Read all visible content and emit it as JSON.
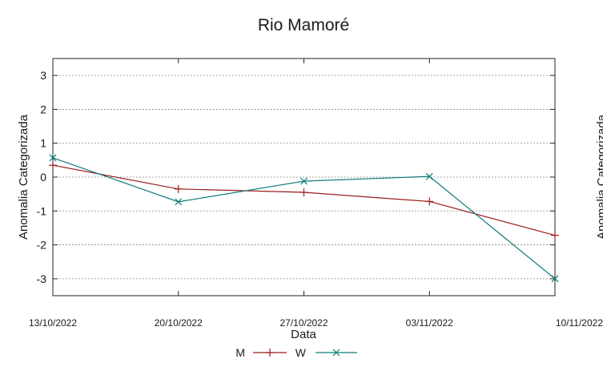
{
  "chart_data": {
    "type": "line",
    "title": "Rio Mamoré",
    "xlabel": "Data",
    "ylabel": "Anomalia Categorizada",
    "ylabel_right": "Anomalia Categorizada",
    "categories": [
      "13/10/2022",
      "20/10/2022",
      "27/10/2022",
      "03/11/2022",
      "10/11/2022"
    ],
    "ylim": [
      -3.5,
      3.5
    ],
    "yticks": [
      "3",
      "2",
      "1",
      "0",
      "-1",
      "-2",
      "-3"
    ],
    "grid": true,
    "legend_position": "bottom-center",
    "series": [
      {
        "name": "M",
        "color": "#9b1c1c",
        "marker": "plus",
        "values": [
          0.35,
          -0.35,
          -0.45,
          -0.72,
          -1.72
        ]
      },
      {
        "name": "W",
        "color": "#0f7a7a",
        "marker": "cross",
        "values": [
          0.57,
          -0.73,
          -0.12,
          0.02,
          -3.0
        ]
      }
    ]
  }
}
